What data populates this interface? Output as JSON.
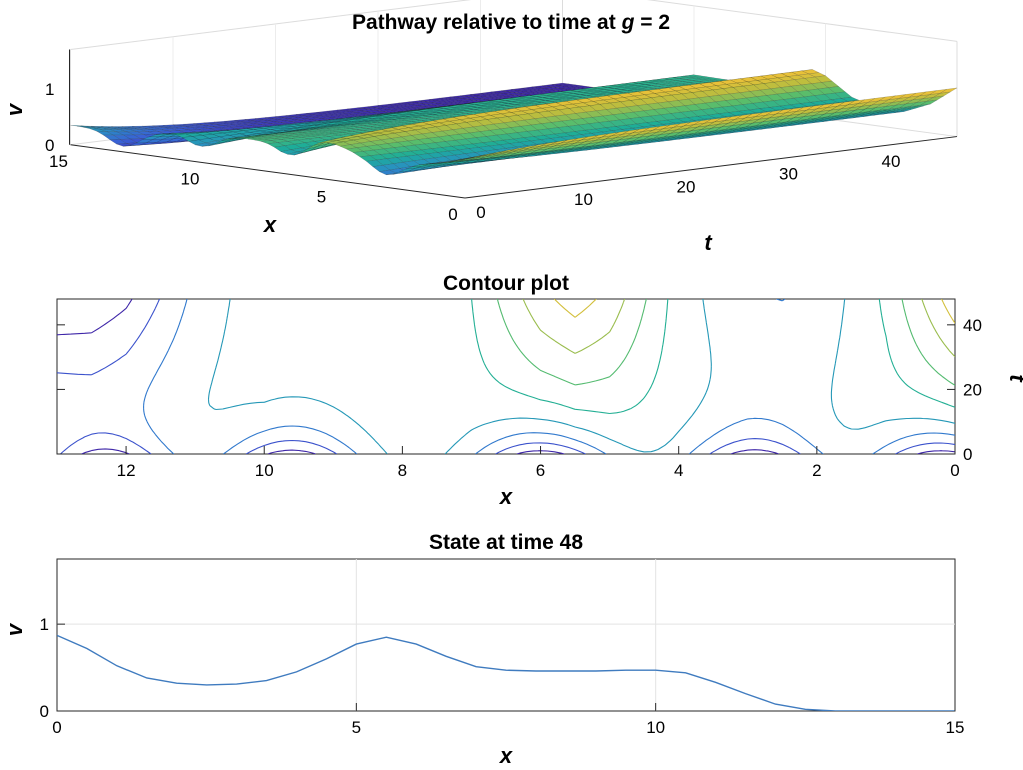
{
  "chart_data": [
    {
      "type": "surface",
      "title_main": "Pathway relative to time at ",
      "title_var": "g",
      "title_rest": " = 2",
      "xlabel": "x",
      "ylabel": "t",
      "zlabel": "v",
      "x_ticks": [
        "15",
        "10",
        "5",
        "0"
      ],
      "t_ticks": [
        "0",
        "10",
        "20",
        "30",
        "40"
      ],
      "z_ticks": [
        "0",
        "1"
      ],
      "xlim": [
        0,
        15
      ],
      "tlim": [
        0,
        48
      ],
      "zlim": [
        0,
        1.7
      ],
      "colormap": [
        "#3e26a8",
        "#3a5fd6",
        "#2a8ec6",
        "#1cad99",
        "#5bbd6b",
        "#b9bd3f",
        "#f4c237",
        "#f9fb0e"
      ],
      "state_at_t48": {
        "x": [
          0,
          1,
          2,
          2.5,
          3,
          4,
          5,
          5.5,
          6,
          7,
          8,
          9,
          10,
          11,
          12,
          12.5,
          13,
          14,
          15
        ],
        "v": [
          0.87,
          0.52,
          0.32,
          0.3,
          0.31,
          0.45,
          0.77,
          0.85,
          0.77,
          0.5,
          0.46,
          0.46,
          0.47,
          0.33,
          0.08,
          0.01,
          0,
          0,
          0
        ]
      }
    },
    {
      "type": "contour",
      "title": "Contour plot",
      "xlabel": "x",
      "ylabel": "t",
      "x_ticks": [
        "12",
        "10",
        "8",
        "6",
        "4",
        "2",
        "0"
      ],
      "t_ticks": [
        "0",
        "20",
        "40"
      ],
      "xlim": [
        0,
        13
      ],
      "tlim": [
        0,
        48
      ],
      "x_reversed": true,
      "levels": [
        0.1,
        0.2,
        0.3,
        0.4,
        0.5,
        0.6,
        0.7,
        0.8,
        0.9,
        1.0
      ],
      "colormap": [
        "#3e26a8",
        "#3a5fd6",
        "#2a8ec6",
        "#1cad99",
        "#5bbd6b",
        "#b9bd3f",
        "#f4c237",
        "#f9fb0e"
      ]
    },
    {
      "type": "line",
      "title": "State at time 48",
      "xlabel": "x",
      "ylabel": "v",
      "x_ticks": [
        "0",
        "5",
        "10",
        "15"
      ],
      "y_ticks": [
        "0",
        "1"
      ],
      "xlim": [
        0,
        15
      ],
      "ylim": [
        0,
        1.75
      ],
      "grid": true,
      "line_color": "#3f7bbf",
      "x": [
        0,
        0.5,
        1,
        1.5,
        2,
        2.5,
        3,
        3.5,
        4,
        4.5,
        5,
        5.5,
        6,
        6.5,
        7,
        7.5,
        8,
        8.5,
        9,
        9.5,
        10,
        10.5,
        11,
        11.5,
        12,
        12.5,
        13,
        14,
        15
      ],
      "y": [
        0.87,
        0.72,
        0.52,
        0.38,
        0.32,
        0.3,
        0.31,
        0.35,
        0.45,
        0.6,
        0.77,
        0.85,
        0.77,
        0.63,
        0.51,
        0.47,
        0.46,
        0.46,
        0.46,
        0.47,
        0.47,
        0.44,
        0.33,
        0.2,
        0.08,
        0.02,
        0,
        0,
        0
      ]
    }
  ]
}
